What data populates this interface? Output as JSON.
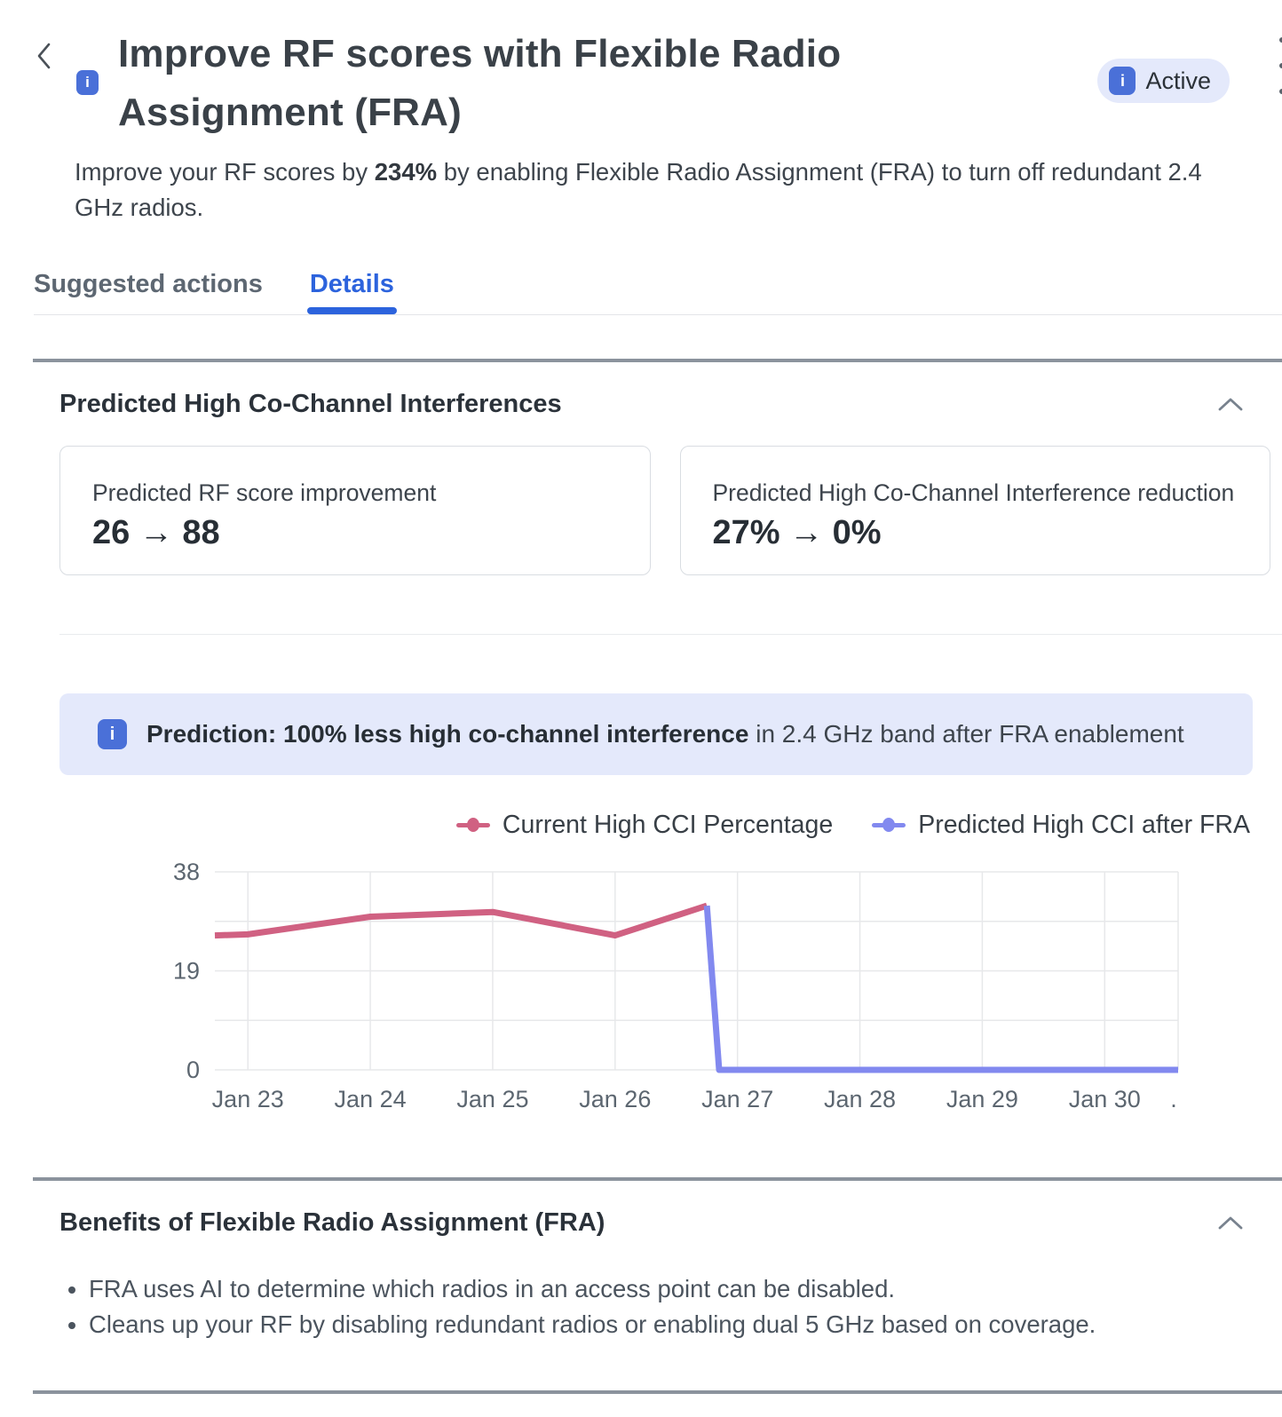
{
  "header": {
    "title_lines": [
      "Improve RF scores with Flexible Radio",
      "Assignment (FRA)"
    ],
    "subtitle": {
      "prefix": "Improve your RF scores by ",
      "highlight": "234%",
      "suffix": " by enabling Flexible Radio Assignment (FRA) to turn off redundant 2.4 GHz radios."
    },
    "status_badge": {
      "label": "Active"
    }
  },
  "tabs": [
    {
      "label": "Suggested actions",
      "active": false
    },
    {
      "label": "Details",
      "active": true
    }
  ],
  "interference_section": {
    "title": "Predicted High Co-Channel Interferences",
    "cards": [
      {
        "label": "Predicted RF score improvement",
        "value": "26 → 88"
      },
      {
        "label": "Predicted High Co-Channel Interference reduction",
        "value": "27% → 0%"
      }
    ],
    "prediction_banner": {
      "highlight": "Prediction: 100% less high co-channel interference",
      "text": " in 2.4 GHz band after FRA enablement"
    }
  },
  "chart_data": {
    "type": "line",
    "title": "",
    "xlabel": "",
    "ylabel": "",
    "unit": "%",
    "grid": true,
    "legend_position": "top-right",
    "x_domain": [
      22.73,
      30.6
    ],
    "ylim": [
      0,
      38
    ],
    "x_tick_labels": [
      "Jan 23",
      "Jan 24",
      "Jan 25",
      "Jan 26",
      "Jan 27",
      "Jan 28",
      "Jan 29",
      "Jan 30"
    ],
    "x_tick_days": [
      23,
      24,
      25,
      26,
      27,
      28,
      29,
      30
    ],
    "x_overflow_label": ".",
    "y_ticks": [
      {
        "value": 0,
        "label": "0"
      },
      {
        "value": 19,
        "label": "19"
      },
      {
        "value": 38,
        "label": "38"
      }
    ],
    "y_gridlines": [
      0,
      9.5,
      19,
      28.5,
      38
    ],
    "series": [
      {
        "name": "Current High CCI Percentage",
        "color": "#d06182",
        "x": [
          22.73,
          23,
          24,
          25,
          26,
          26.75
        ],
        "values": [
          25.8,
          26,
          29.4,
          30.3,
          25.8,
          31.5
        ]
      },
      {
        "name": "Predicted High CCI after FRA",
        "color": "#8289ef",
        "x": [
          26.75,
          26.85,
          30.6
        ],
        "values": [
          31.5,
          0,
          0
        ]
      }
    ]
  },
  "benefits_section": {
    "title": "Benefits of Flexible Radio Assignment (FRA)",
    "bullets": [
      "FRA uses AI to determine which radios in an access point can be disabled.",
      "Cleans up your RF by disabling redundant radios or enabling dual 5 GHz based on coverage."
    ]
  },
  "colors": {
    "accent_blue": "#2c63dd",
    "info_icon": "#4a70d8",
    "badge_bg": "#e4e9fb",
    "banner_bg": "#e4e9fb",
    "divider_strong": "#8b939d",
    "series_current": "#d06182",
    "series_predicted": "#8289ef"
  }
}
